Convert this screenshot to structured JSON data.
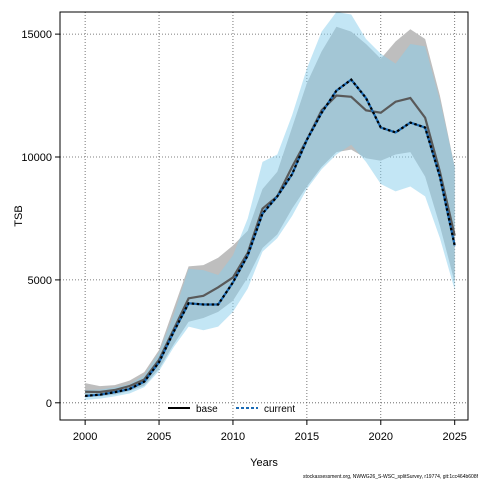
{
  "chart_data": {
    "type": "line",
    "xlabel": "Years",
    "ylabel": "TSB",
    "xlim": [
      1998.3,
      2025.9
    ],
    "ylim": [
      -700,
      15900
    ],
    "x_ticks": [
      2000,
      2005,
      2010,
      2015,
      2020,
      2025
    ],
    "y_ticks": [
      0,
      5000,
      10000,
      15000
    ],
    "grid": true,
    "legend_position": "bottom-center",
    "footnote": "stockassessment.org, NWWG26_S-WSC_splitSurvey, r19774, git:1cc464b608f",
    "x": [
      2000,
      2001,
      2002,
      2003,
      2004,
      2005,
      2006,
      2007,
      2008,
      2009,
      2010,
      2011,
      2012,
      2013,
      2014,
      2015,
      2016,
      2017,
      2018,
      2019,
      2020,
      2021,
      2022,
      2023,
      2024,
      2025
    ],
    "series": [
      {
        "name": "base",
        "color": "#595959",
        "band_color": "#bebebe",
        "values": [
          450,
          440,
          520,
          680,
          950,
          1750,
          3000,
          4250,
          4350,
          4700,
          5100,
          6100,
          7900,
          8400,
          9600,
          10700,
          11900,
          12500,
          12450,
          11900,
          11800,
          12250,
          12400,
          11600,
          9400,
          6800
        ],
        "upper": [
          800,
          680,
          720,
          900,
          1250,
          2150,
          3850,
          5550,
          5600,
          5900,
          6400,
          7000,
          8700,
          9400,
          11200,
          13000,
          14300,
          15300,
          15100,
          14600,
          14000,
          14700,
          15200,
          14800,
          12500,
          9600
        ],
        "lower": [
          250,
          260,
          330,
          480,
          700,
          1380,
          2380,
          3300,
          3450,
          3700,
          4150,
          5100,
          6300,
          6850,
          7900,
          8800,
          9600,
          10200,
          10300,
          9950,
          9850,
          10100,
          10200,
          9200,
          7200,
          4900
        ]
      },
      {
        "name": "current",
        "color": "#000000",
        "line_color": "#1b6bb5",
        "band_color": "#87ceeb",
        "values": [
          280,
          330,
          430,
          560,
          860,
          1650,
          2900,
          4050,
          4000,
          4000,
          4900,
          6000,
          7700,
          8400,
          9300,
          10700,
          11800,
          12700,
          13150,
          12400,
          11200,
          11000,
          11400,
          11200,
          9200,
          6400
        ],
        "upper": [
          520,
          540,
          620,
          760,
          1120,
          2050,
          3600,
          5450,
          5400,
          5200,
          6000,
          7500,
          9800,
          10100,
          11700,
          13600,
          15100,
          15900,
          15800,
          14800,
          14200,
          13800,
          14600,
          14500,
          12300,
          9600
        ],
        "lower": [
          120,
          170,
          260,
          380,
          640,
          1290,
          2270,
          3100,
          2950,
          3100,
          3700,
          4650,
          6150,
          6700,
          7600,
          8700,
          9500,
          10100,
          10500,
          9800,
          8900,
          8600,
          8800,
          8400,
          6700,
          4600
        ]
      }
    ]
  }
}
